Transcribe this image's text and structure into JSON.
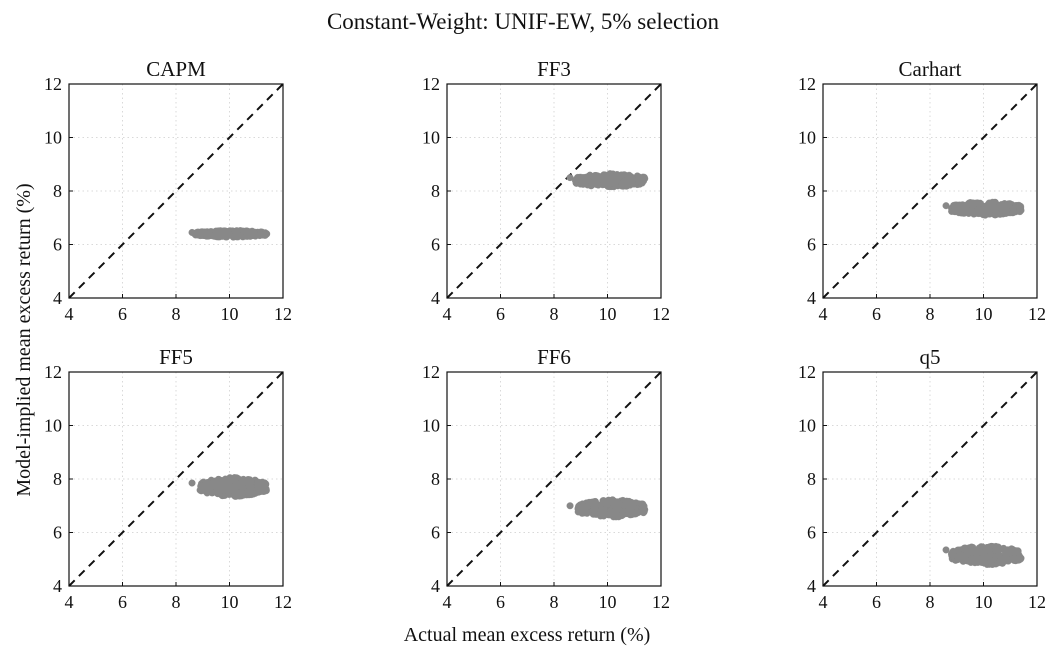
{
  "figure": {
    "title": "Constant-Weight: UNIF-EW, 5% selection",
    "xlabel": "Actual mean excess return (%)",
    "ylabel": "Model-implied mean excess return (%)"
  },
  "chart_data": [
    {
      "type": "scatter",
      "title": "CAPM",
      "xlim": [
        4,
        12
      ],
      "ylim": [
        4,
        12
      ],
      "xticks": [
        4,
        6,
        8,
        10,
        12
      ],
      "yticks": [
        4,
        6,
        8,
        10,
        12
      ],
      "grid": true,
      "reference_line": {
        "style": "dashed",
        "x": [
          4,
          12
        ],
        "y": [
          4,
          12
        ]
      },
      "point_color": "#888888",
      "cloud": {
        "x_range": [
          8.7,
          11.4
        ],
        "y_center": 6.4,
        "y_halfwidth": 0.12,
        "outlier": [
          8.6,
          6.45
        ]
      }
    },
    {
      "type": "scatter",
      "title": "FF3",
      "xlim": [
        4,
        12
      ],
      "ylim": [
        4,
        12
      ],
      "xticks": [
        4,
        6,
        8,
        10,
        12
      ],
      "yticks": [
        4,
        6,
        8,
        10,
        12
      ],
      "grid": true,
      "reference_line": {
        "style": "dashed",
        "x": [
          4,
          12
        ],
        "y": [
          4,
          12
        ]
      },
      "point_color": "#888888",
      "cloud": {
        "x_range": [
          8.8,
          11.4
        ],
        "y_center": 8.4,
        "y_halfwidth": 0.25,
        "outlier": [
          8.6,
          8.5
        ]
      }
    },
    {
      "type": "scatter",
      "title": "Carhart",
      "xlim": [
        4,
        12
      ],
      "ylim": [
        4,
        12
      ],
      "xticks": [
        4,
        6,
        8,
        10,
        12
      ],
      "yticks": [
        4,
        6,
        8,
        10,
        12
      ],
      "grid": true,
      "reference_line": {
        "style": "dashed",
        "x": [
          4,
          12
        ],
        "y": [
          4,
          12
        ]
      },
      "point_color": "#888888",
      "cloud": {
        "x_range": [
          8.8,
          11.4
        ],
        "y_center": 7.35,
        "y_halfwidth": 0.25,
        "outlier": [
          8.6,
          7.45
        ]
      }
    },
    {
      "type": "scatter",
      "title": "FF5",
      "xlim": [
        4,
        12
      ],
      "ylim": [
        4,
        12
      ],
      "xticks": [
        4,
        6,
        8,
        10,
        12
      ],
      "yticks": [
        4,
        6,
        8,
        10,
        12
      ],
      "grid": true,
      "reference_line": {
        "style": "dashed",
        "x": [
          4,
          12
        ],
        "y": [
          4,
          12
        ]
      },
      "point_color": "#888888",
      "cloud": {
        "x_range": [
          8.9,
          11.4
        ],
        "y_center": 7.7,
        "y_halfwidth": 0.35,
        "outlier": [
          8.6,
          7.85
        ]
      }
    },
    {
      "type": "scatter",
      "title": "FF6",
      "xlim": [
        4,
        12
      ],
      "ylim": [
        4,
        12
      ],
      "xticks": [
        4,
        6,
        8,
        10,
        12
      ],
      "yticks": [
        4,
        6,
        8,
        10,
        12
      ],
      "grid": true,
      "reference_line": {
        "style": "dashed",
        "x": [
          4,
          12
        ],
        "y": [
          4,
          12
        ]
      },
      "point_color": "#888888",
      "cloud": {
        "x_range": [
          8.9,
          11.4
        ],
        "y_center": 6.9,
        "y_halfwidth": 0.32,
        "outlier": [
          8.6,
          7.0
        ]
      }
    },
    {
      "type": "scatter",
      "title": "q5",
      "xlim": [
        4,
        12
      ],
      "ylim": [
        4,
        12
      ],
      "xticks": [
        4,
        6,
        8,
        10,
        12
      ],
      "yticks": [
        4,
        6,
        8,
        10,
        12
      ],
      "grid": true,
      "reference_line": {
        "style": "dashed",
        "x": [
          4,
          12
        ],
        "y": [
          4,
          12
        ]
      },
      "point_color": "#888888",
      "cloud": {
        "x_range": [
          8.8,
          11.4
        ],
        "y_center": 5.15,
        "y_halfwidth": 0.35,
        "outlier": [
          8.6,
          5.35
        ]
      }
    }
  ]
}
